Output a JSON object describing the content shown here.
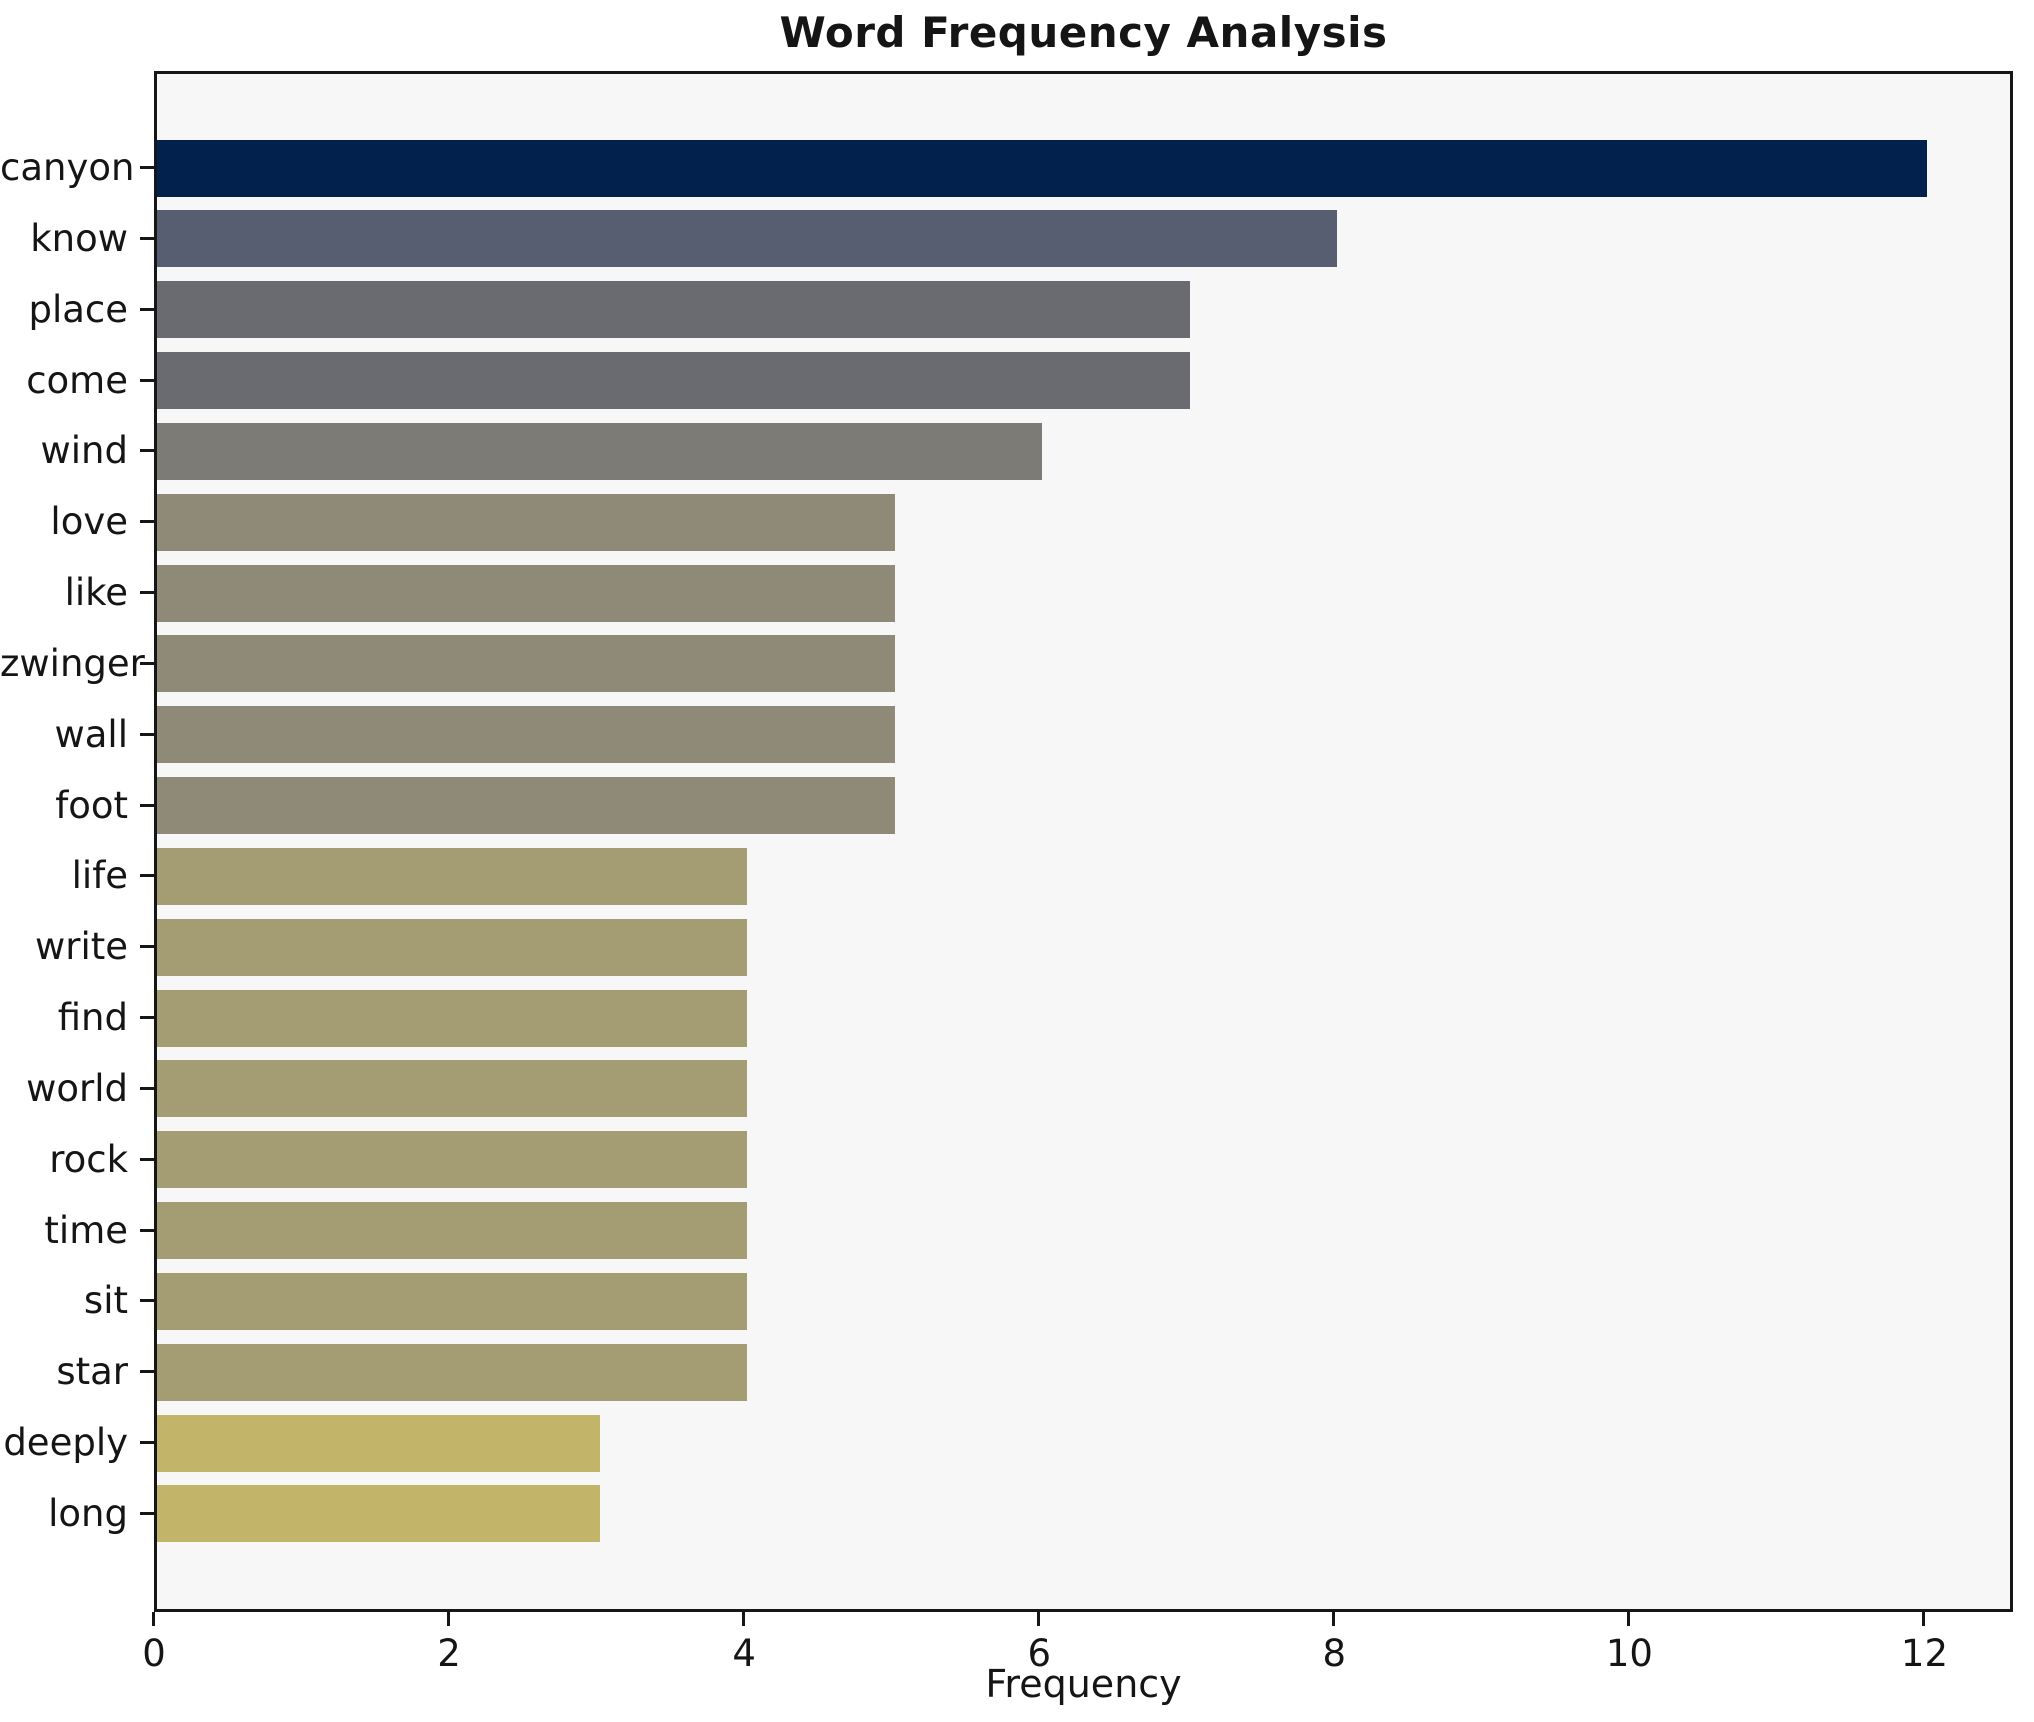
{
  "figure": {
    "title": "Word Frequency Analysis",
    "xlabel": "Frequency",
    "background_color": "#ffffff",
    "plot_background_color": "#f7f7f8",
    "spine_color": "#161616"
  },
  "chart_data": {
    "type": "bar",
    "orientation": "horizontal",
    "title": "Word Frequency Analysis",
    "xlabel": "Frequency",
    "ylabel": "",
    "grid": false,
    "legend": false,
    "xlim": [
      0,
      12.6
    ],
    "xticks": [
      0,
      2,
      4,
      6,
      8,
      10,
      12
    ],
    "categories": [
      "canyon",
      "know",
      "place",
      "come",
      "wind",
      "love",
      "like",
      "zwinger",
      "wall",
      "foot",
      "life",
      "write",
      "find",
      "world",
      "rock",
      "time",
      "sit",
      "star",
      "deeply",
      "long"
    ],
    "values": [
      12,
      8,
      7,
      7,
      6,
      5,
      5,
      5,
      5,
      5,
      4,
      4,
      4,
      4,
      4,
      4,
      4,
      4,
      3,
      3
    ],
    "bar_colors": [
      "#02214d",
      "#575e71",
      "#6a6b70",
      "#6a6b70",
      "#7c7b75",
      "#8f8977",
      "#8f8977",
      "#8f8977",
      "#8f8977",
      "#8f8977",
      "#a49c73",
      "#a49c73",
      "#a49c73",
      "#a49c73",
      "#a49c73",
      "#a49c73",
      "#a49c73",
      "#a49c73",
      "#c2b469",
      "#c2b469"
    ]
  }
}
